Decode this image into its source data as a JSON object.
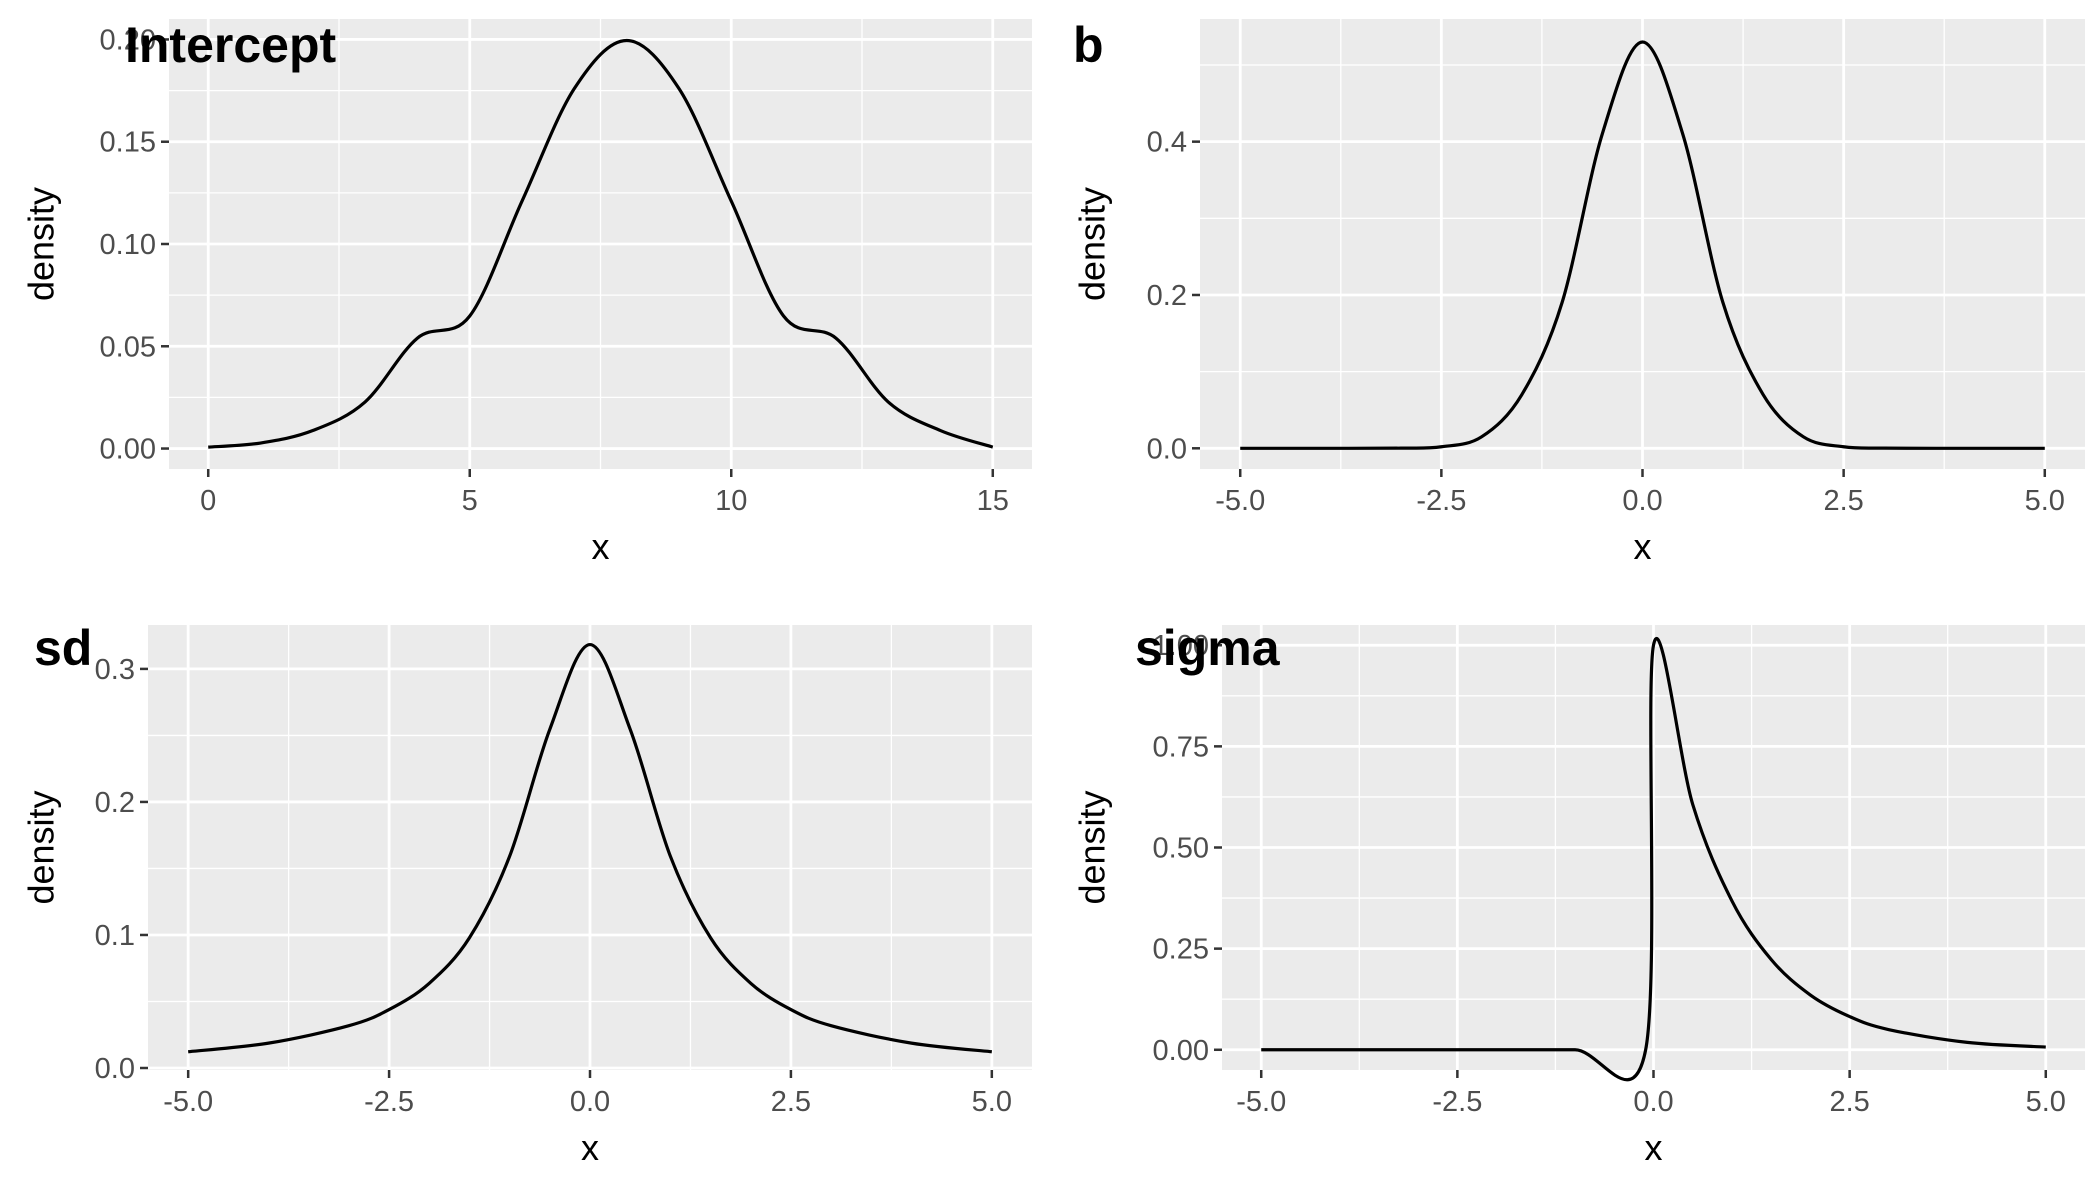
{
  "chart_data": [
    {
      "type": "line",
      "title": "Intercept",
      "xlabel": "x",
      "ylabel": "density",
      "xlim": [
        -0.75,
        15.75
      ],
      "ylim": [
        -0.01,
        0.21
      ],
      "x_ticks": [
        0,
        5,
        10,
        15
      ],
      "x_tick_labels": [
        "0",
        "5",
        "10",
        "15"
      ],
      "y_ticks": [
        0,
        0.05,
        0.1,
        0.15,
        0.2
      ],
      "y_tick_labels": [
        "0.00",
        "0.05",
        "0.10",
        "0.15",
        "0.20"
      ],
      "grid": true,
      "series": [
        {
          "x": [
            0,
            1,
            2,
            3,
            4,
            5,
            6,
            7,
            8,
            9,
            10,
            11,
            12,
            13,
            14,
            15
          ],
          "y": [
            0.0007,
            0.0027,
            0.0088,
            0.0228,
            0.054,
            0.0648,
            0.121,
            0.176,
            0.1995,
            0.176,
            0.121,
            0.0648,
            0.054,
            0.0228,
            0.0088,
            0.0007
          ]
        }
      ]
    },
    {
      "type": "line",
      "title": "b",
      "xlabel": "x",
      "ylabel": "density",
      "xlim": [
        -5.5,
        5.5
      ],
      "ylim": [
        -0.027,
        0.56
      ],
      "x_ticks": [
        -5,
        -2.5,
        0,
        2.5,
        5
      ],
      "x_tick_labels": [
        "-5.0",
        "-2.5",
        "0.0",
        "2.5",
        "5.0"
      ],
      "y_ticks": [
        0,
        0.2,
        0.4
      ],
      "y_tick_labels": [
        "0.0",
        "0.2",
        "0.4"
      ],
      "grid": true,
      "series": [
        {
          "x": [
            -5,
            -4,
            -3,
            -2.5,
            -2,
            -1.5,
            -1,
            -0.5,
            0,
            0.5,
            1,
            1.5,
            2,
            2.5,
            3,
            4,
            5
          ],
          "y": [
            0,
            0,
            0.0002,
            0.002,
            0.015,
            0.07,
            0.19,
            0.41,
            0.53,
            0.41,
            0.19,
            0.07,
            0.015,
            0.002,
            0.0002,
            0,
            0
          ]
        }
      ]
    },
    {
      "type": "line",
      "title": "sd",
      "xlabel": "x",
      "ylabel": "density",
      "xlim": [
        -5.5,
        5.5
      ],
      "ylim": [
        -0.0015,
        0.333
      ],
      "x_ticks": [
        -5,
        -2.5,
        0,
        2.5,
        5
      ],
      "x_tick_labels": [
        "-5.0",
        "-2.5",
        "0.0",
        "2.5",
        "5.0"
      ],
      "y_ticks": [
        0,
        0.1,
        0.2,
        0.3
      ],
      "y_tick_labels": [
        "0.0",
        "0.1",
        "0.2",
        "0.3"
      ],
      "grid": true,
      "series": [
        {
          "x": [
            -5,
            -4,
            -3,
            -2.5,
            -2,
            -1.5,
            -1,
            -0.5,
            0,
            0.5,
            1,
            1.5,
            2,
            2.5,
            3,
            4,
            5
          ],
          "y": [
            0.0122,
            0.0187,
            0.0318,
            0.0439,
            0.0637,
            0.0979,
            0.1592,
            0.2546,
            0.3183,
            0.2546,
            0.1592,
            0.0979,
            0.0637,
            0.0439,
            0.0318,
            0.0187,
            0.0122
          ]
        }
      ]
    },
    {
      "type": "line",
      "title": "sigma",
      "xlabel": "x",
      "ylabel": "density",
      "xlim": [
        -5.5,
        5.5
      ],
      "ylim": [
        -0.05,
        1.05
      ],
      "x_ticks": [
        -5,
        -2.5,
        0,
        2.5,
        5
      ],
      "x_tick_labels": [
        "-5.0",
        "-2.5",
        "0.0",
        "2.5",
        "5.0"
      ],
      "y_ticks": [
        0,
        0.25,
        0.5,
        0.75,
        1.0
      ],
      "y_tick_labels": [
        "0.00",
        "0.25",
        "0.50",
        "0.75",
        "1.00"
      ],
      "grid": true,
      "series": [
        {
          "x": [
            -5,
            -4,
            -3,
            -2,
            -1,
            -0.1,
            0,
            0.5,
            1,
            1.5,
            2,
            2.5,
            3,
            4,
            5
          ],
          "y": [
            0,
            0,
            0,
            0,
            0,
            0,
            1.0,
            0.6065,
            0.3679,
            0.2231,
            0.1353,
            0.0821,
            0.0498,
            0.0183,
            0.0067
          ]
        }
      ]
    }
  ]
}
